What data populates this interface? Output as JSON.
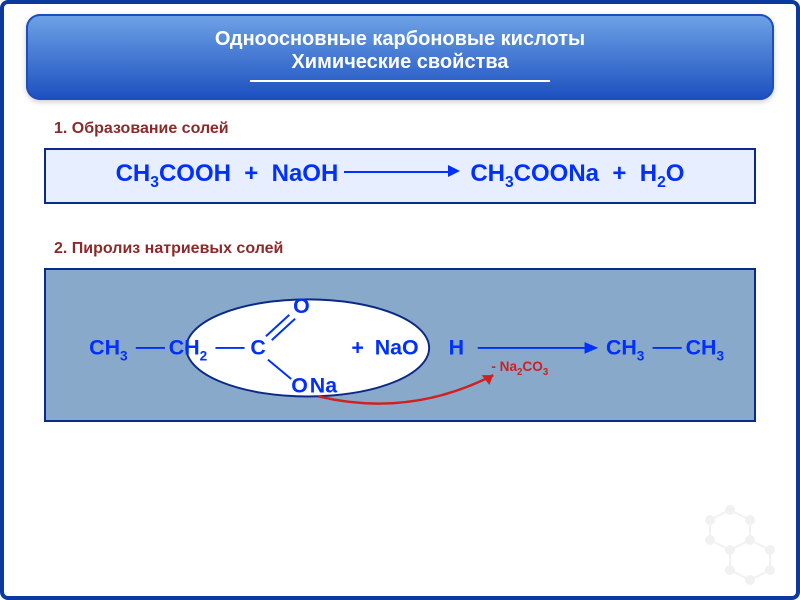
{
  "colors": {
    "frame_border": "#0a3a9e",
    "banner_grad_top": "#6fa3e6",
    "banner_grad_bottom": "#1b4fbf",
    "banner_text": "#ffffff",
    "heading_text": "#8b2a2a",
    "box_border": "#0a2a8a",
    "box_bg_1": "#e6eeff",
    "box_bg_2": "#88a9c9",
    "formula_text": "#0030ff",
    "byproduct_text": "#d02020",
    "curve_arrow": "#d02020",
    "egg_fill": "#ffffff",
    "egg_stroke": "#0a2a8a",
    "bond_color": "#0030ff",
    "bg_molecule": "#808080"
  },
  "title": {
    "line1": "Одноосновные карбоновые кислоты",
    "line2": "Химические свойства",
    "fontsize": 20,
    "underline_width": 300
  },
  "section1": {
    "label": "1. Образование солей",
    "fontsize": 16,
    "equation": {
      "lhs_1": "CH",
      "lhs_1_sub": "3",
      "lhs_2": "COOH",
      "plus": "  +  ",
      "lhs_3": "NaOH",
      "rhs_1": "CH",
      "rhs_1_sub": "3",
      "rhs_2": "COONa",
      "rhs_3": "H",
      "rhs_3_sub": "2",
      "rhs_4": "O",
      "fontsize": 24
    }
  },
  "section2": {
    "label": "2. Пиролиз натриевых солей",
    "fontsize": 16,
    "diagram": {
      "ch3_left": "CH",
      "ch3_left_sub": "3",
      "ch2": "CH",
      "ch2_sub": "2",
      "c": "C",
      "o_top": "O",
      "o_bottom": "O",
      "na": "Na",
      "nao": "NaO",
      "h": "H",
      "plus": "+",
      "arrow_to_rhs": true,
      "rhs_ch3_a": "CH",
      "rhs_ch3_a_sub": "3",
      "rhs_ch3_b": "CH",
      "rhs_ch3_b_sub": "3",
      "byproduct_prefix": "- ",
      "byproduct": "Na",
      "byproduct_sub1": "2",
      "byproduct_mid": "CO",
      "byproduct_sub2": "3",
      "fontsize": 22
    }
  }
}
